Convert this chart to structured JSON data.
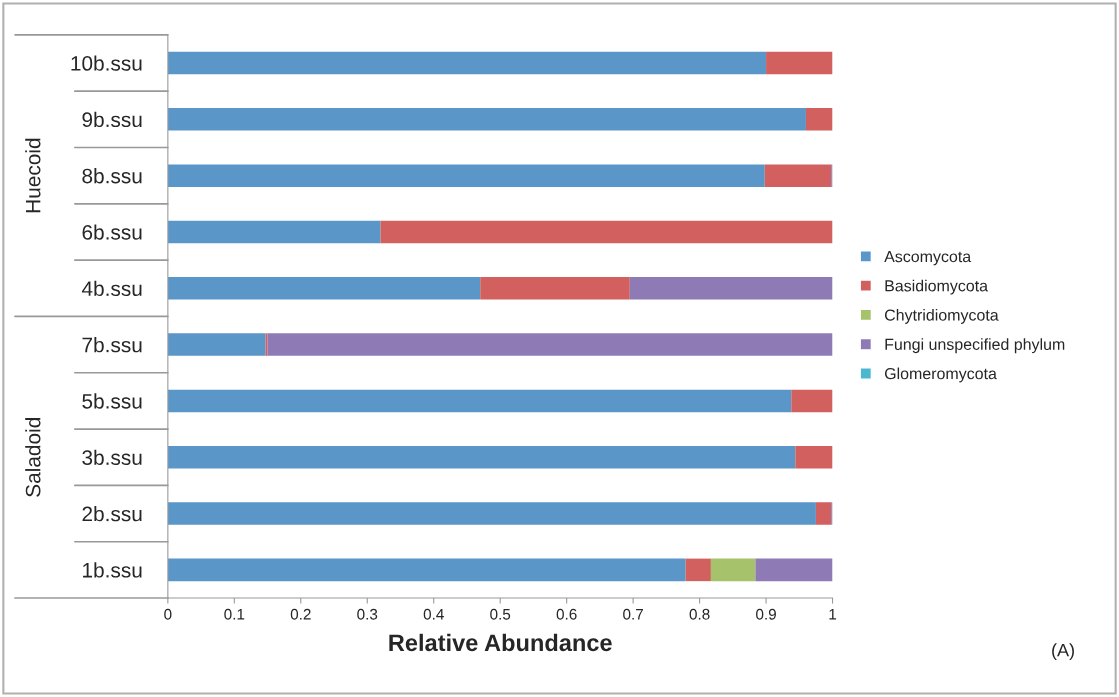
{
  "chart_data": {
    "type": "bar",
    "orientation": "horizontal",
    "stacked": true,
    "xlabel": "Relative Abundance",
    "categories": [
      "10b.ssu",
      "9b.ssu",
      "8b.ssu",
      "6b.ssu",
      "4b.ssu",
      "7b.ssu",
      "5b.ssu",
      "3b.ssu",
      "2b.ssu",
      "1b.ssu"
    ],
    "series": [
      {
        "name": "Ascomycota",
        "color": "#5b96c9",
        "values": [
          0.9,
          0.96,
          0.898,
          0.32,
          0.47,
          0.147,
          0.938,
          0.944,
          0.975,
          0.779
        ]
      },
      {
        "name": "Basidiomycota",
        "color": "#d1605e",
        "values": [
          0.1,
          0.04,
          0.1,
          0.68,
          0.225,
          0.003,
          0.062,
          0.056,
          0.023,
          0.038
        ]
      },
      {
        "name": "Chytridiomycota",
        "color": "#a6c26b",
        "values": [
          0,
          0,
          0,
          0,
          0,
          0,
          0,
          0,
          0,
          0.067
        ]
      },
      {
        "name": "Fungi unspecified phylum",
        "color": "#8e7ab5",
        "values": [
          0,
          0,
          0.002,
          0,
          0.305,
          0.85,
          0,
          0,
          0.002,
          0.116
        ]
      },
      {
        "name": "Glomeromycota",
        "color": "#4bb8d0",
        "values": [
          0,
          0,
          0,
          0,
          0,
          0,
          0,
          0,
          0,
          0
        ]
      }
    ],
    "xlim": [
      0,
      1
    ],
    "xticks": [
      0,
      0.1,
      0.2,
      0.3,
      0.4,
      0.5,
      0.6,
      0.7,
      0.8,
      0.9,
      1
    ],
    "grid": false,
    "legend": "right",
    "annotations": [
      "Huecoid",
      "Saladoid",
      "(A)"
    ]
  }
}
